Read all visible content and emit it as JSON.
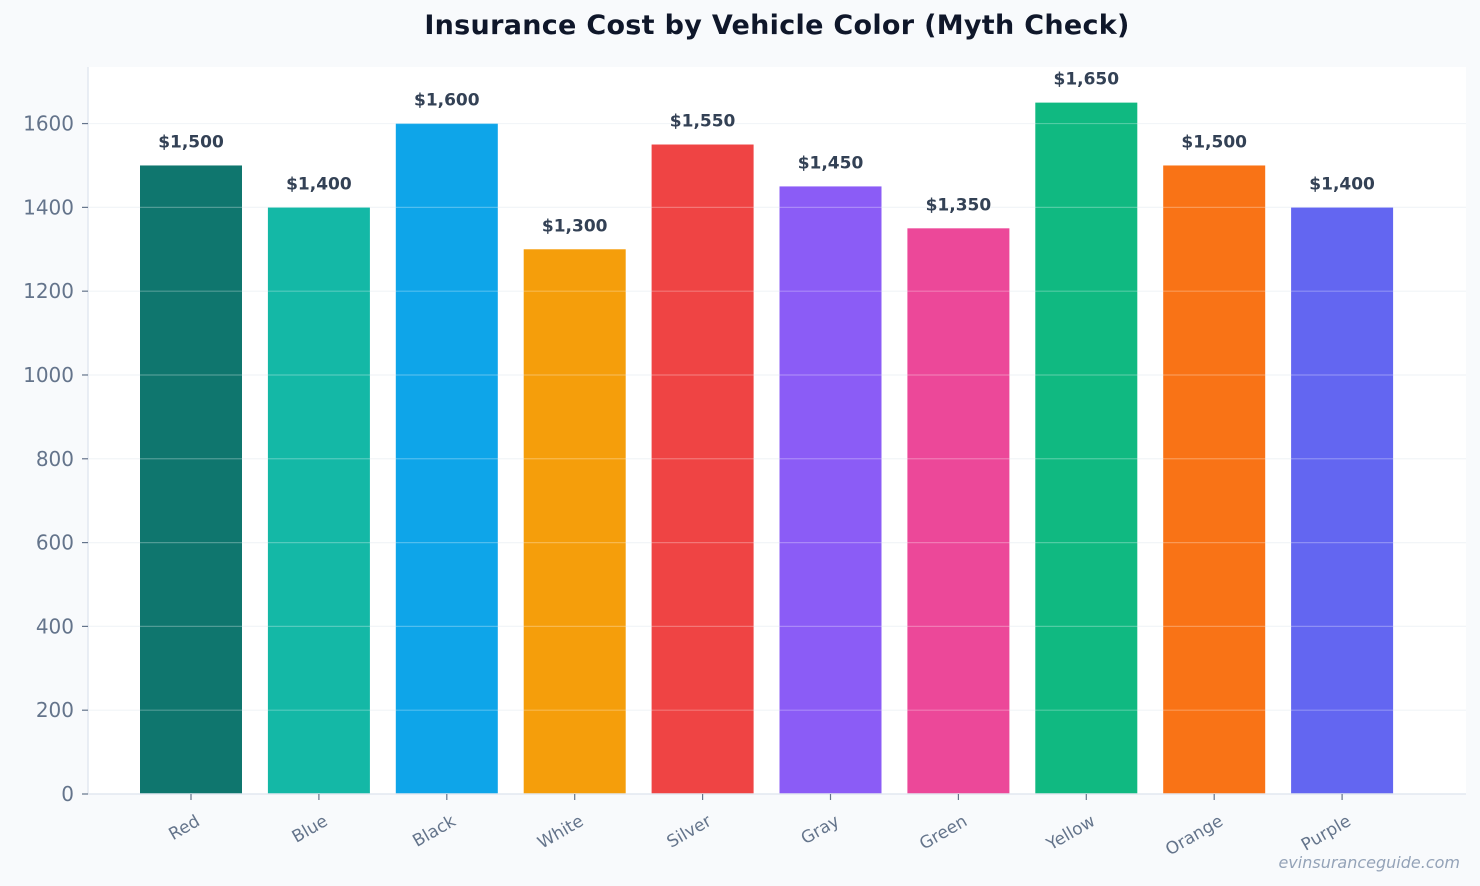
{
  "chart_data": {
    "type": "bar",
    "title": "Insurance Cost by Vehicle Color (Myth Check)",
    "xlabel": "",
    "ylabel": "",
    "categories": [
      "Red",
      "Blue",
      "Black",
      "White",
      "Silver",
      "Gray",
      "Green",
      "Yellow",
      "Orange",
      "Purple"
    ],
    "values": [
      1500,
      1400,
      1600,
      1300,
      1550,
      1450,
      1350,
      1650,
      1500,
      1400
    ],
    "value_labels": [
      "$1,500",
      "$1,400",
      "$1,600",
      "$1,300",
      "$1,550",
      "$1,450",
      "$1,350",
      "$1,650",
      "$1,500",
      "$1,400"
    ],
    "bar_colors": [
      "#0f766e",
      "#14b8a6",
      "#0ea5e9",
      "#f59e0b",
      "#ef4444",
      "#8b5cf6",
      "#ec4899",
      "#10b981",
      "#f97316",
      "#6366f1"
    ],
    "yticks": [
      0,
      200,
      400,
      600,
      800,
      1000,
      1200,
      1400,
      1600
    ],
    "ylim": [
      0,
      1735
    ],
    "grid": true,
    "legend": "none"
  },
  "watermark": "evinsuranceguide.com"
}
